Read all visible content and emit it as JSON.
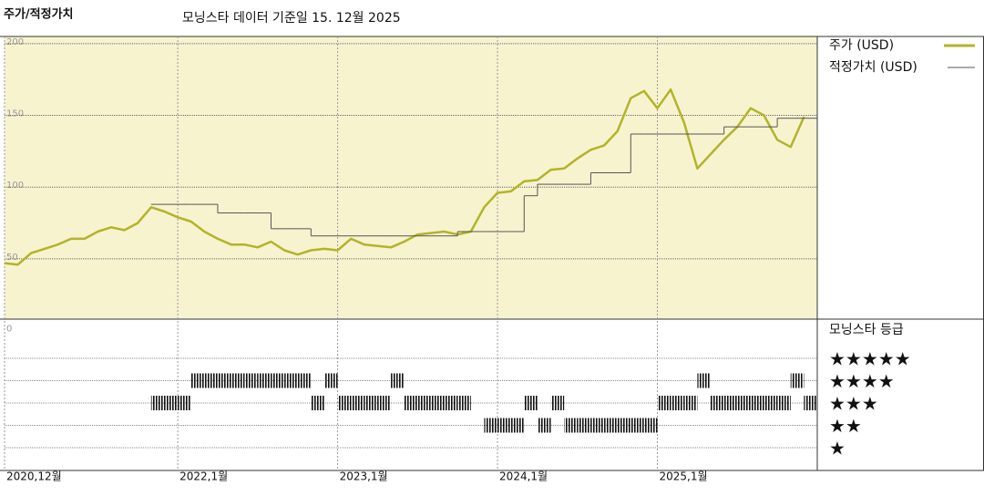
{
  "chart_data": {
    "type": "line",
    "title": "주가/적정가치",
    "subtitle": "모닝스타 데이터 기준일 15. 12월 2025",
    "x": [
      "2020-12",
      "2021-01",
      "2021-02",
      "2021-03",
      "2021-04",
      "2021-05",
      "2021-06",
      "2021-07",
      "2021-08",
      "2021-09",
      "2021-10",
      "2021-11",
      "2021-12",
      "2022-01",
      "2022-02",
      "2022-03",
      "2022-04",
      "2022-05",
      "2022-06",
      "2022-07",
      "2022-08",
      "2022-09",
      "2022-10",
      "2022-11",
      "2022-12",
      "2023-01",
      "2023-02",
      "2023-03",
      "2023-04",
      "2023-05",
      "2023-06",
      "2023-07",
      "2023-08",
      "2023-09",
      "2023-10",
      "2023-11",
      "2023-12",
      "2024-01",
      "2024-02",
      "2024-03",
      "2024-04",
      "2024-05",
      "2024-06",
      "2024-07",
      "2024-08",
      "2024-09",
      "2024-10",
      "2024-11",
      "2024-12",
      "2025-01",
      "2025-02",
      "2025-03",
      "2025-04",
      "2025-05",
      "2025-06",
      "2025-07",
      "2025-08",
      "2025-09",
      "2025-10",
      "2025-11",
      "2025-12"
    ],
    "series": [
      {
        "name": "주가 (USD)",
        "color": "#b3b32a",
        "values": [
          47,
          46,
          54,
          57,
          60,
          64,
          64,
          69,
          72,
          70,
          75,
          86,
          83,
          79,
          76,
          69,
          64,
          60,
          60,
          58,
          62,
          56,
          53,
          56,
          57,
          56,
          64,
          60,
          59,
          58,
          62,
          67,
          68,
          69,
          67,
          69,
          86,
          96,
          97,
          104,
          105,
          112,
          113,
          120,
          126,
          129,
          139,
          162,
          167,
          155,
          168,
          145,
          113,
          123,
          133,
          142,
          155,
          150,
          133,
          128,
          149
        ]
      },
      {
        "name": "적정가치 (USD)",
        "color": "#555555",
        "values": [
          null,
          null,
          null,
          null,
          null,
          null,
          null,
          null,
          null,
          null,
          null,
          88,
          88,
          88,
          88,
          88,
          82,
          82,
          82,
          82,
          71,
          71,
          71,
          66,
          66,
          66,
          66,
          66,
          66,
          66,
          66,
          66,
          66,
          66,
          69,
          69,
          69,
          69,
          69,
          94,
          102,
          102,
          102,
          102,
          110,
          110,
          110,
          137,
          137,
          137,
          137,
          137,
          137,
          137,
          142,
          142,
          142,
          142,
          148,
          148,
          148
        ]
      }
    ],
    "xlim": [
      "2020-12",
      "2026-01"
    ],
    "xticks": [
      {
        "value": "2020-12",
        "label": "2020,12월"
      },
      {
        "value": "2022-01",
        "label": "2022,1월"
      },
      {
        "value": "2023-01",
        "label": "2023,1월"
      },
      {
        "value": "2024-01",
        "label": "2024,1월"
      },
      {
        "value": "2025-01",
        "label": "2025,1월"
      }
    ],
    "ylim": [
      8,
      205
    ],
    "yticks": [
      0,
      50,
      100,
      150,
      200
    ],
    "grid": true,
    "background": "#f7f3cf",
    "rating": {
      "title": "모닝스타 등급",
      "labels": [
        "★★★★★",
        "★★★★",
        "★★★",
        "★★",
        "★"
      ],
      "values": [
        null,
        null,
        null,
        null,
        null,
        null,
        null,
        null,
        null,
        null,
        null,
        3,
        3,
        3,
        4,
        4,
        4,
        4,
        4,
        4,
        4,
        4,
        4,
        3,
        4,
        3,
        3,
        3,
        3,
        4,
        3,
        3,
        3,
        3,
        3,
        null,
        2,
        2,
        2,
        3,
        2,
        3,
        2,
        2,
        2,
        2,
        2,
        2,
        2,
        3,
        3,
        3,
        4,
        3,
        3,
        3,
        3,
        3,
        3,
        4,
        3
      ]
    }
  }
}
